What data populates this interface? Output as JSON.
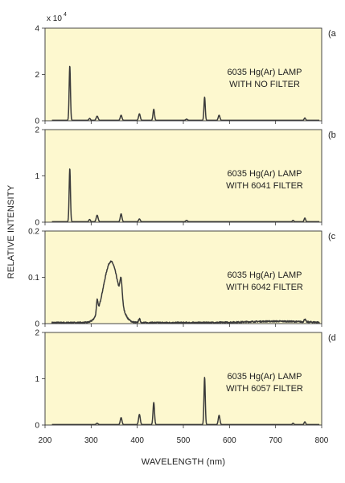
{
  "figure": {
    "y_axis_label": "RELATIVE INTENSITY",
    "x_axis_label": "WAVELENGTH (nm)",
    "scale_note": "x 10",
    "scale_exponent": "4"
  },
  "chart_data": [
    {
      "type": "line",
      "panel_label": "(a",
      "annotation": [
        "6035 Hg(Ar) LAMP",
        "WITH NO FILTER"
      ],
      "xlim": [
        200,
        800
      ],
      "ylim": [
        0,
        4
      ],
      "y_ticks": [
        "0",
        "2",
        "4"
      ],
      "x_ticks": [],
      "baseline": 0.02,
      "noise": 0,
      "peaks": [
        {
          "x": 253.7,
          "y": 2.35,
          "w": 1.4
        },
        {
          "x": 296.7,
          "y": 0.08,
          "w": 1.6
        },
        {
          "x": 313,
          "y": 0.18,
          "w": 2
        },
        {
          "x": 365,
          "y": 0.22,
          "w": 1.8
        },
        {
          "x": 404.7,
          "y": 0.28,
          "w": 1.8
        },
        {
          "x": 435.8,
          "y": 0.48,
          "w": 1.6
        },
        {
          "x": 507,
          "y": 0.05,
          "w": 2
        },
        {
          "x": 546.1,
          "y": 1.0,
          "w": 1.4
        },
        {
          "x": 577.5,
          "y": 0.22,
          "w": 1.8
        },
        {
          "x": 763.5,
          "y": 0.1,
          "w": 1.6
        }
      ]
    },
    {
      "type": "line",
      "panel_label": "(b",
      "annotation": [
        "6035 Hg(Ar) LAMP",
        "WITH 6041 FILTER"
      ],
      "xlim": [
        200,
        800
      ],
      "ylim": [
        0,
        2
      ],
      "y_ticks": [
        "0",
        "1",
        "2"
      ],
      "x_ticks": [],
      "baseline": 0.01,
      "noise": 0,
      "peaks": [
        {
          "x": 253.7,
          "y": 1.15,
          "w": 1.4
        },
        {
          "x": 296.7,
          "y": 0.05,
          "w": 1.6
        },
        {
          "x": 313,
          "y": 0.14,
          "w": 2
        },
        {
          "x": 365,
          "y": 0.17,
          "w": 1.8
        },
        {
          "x": 404.7,
          "y": 0.06,
          "w": 1.8
        },
        {
          "x": 507,
          "y": 0.03,
          "w": 2
        },
        {
          "x": 763.5,
          "y": 0.08,
          "w": 1.6
        },
        {
          "x": 738,
          "y": 0.03,
          "w": 1.6
        }
      ]
    },
    {
      "type": "line",
      "panel_label": "(c",
      "annotation": [
        "6035 Hg(Ar) LAMP",
        "WITH 6042 FILTER"
      ],
      "xlim": [
        200,
        800
      ],
      "ylim": [
        0,
        0.2
      ],
      "y_ticks": [
        "0",
        "0.1",
        "0.2"
      ],
      "x_ticks": [],
      "baseline": 0.002,
      "noise": 0.0015,
      "broad": [
        {
          "x": 343,
          "y": 0.132,
          "w": 16
        },
        {
          "x": 700,
          "y": 0.003,
          "w": 60
        }
      ],
      "peaks": [
        {
          "x": 313,
          "y": 0.028,
          "w": 1.6
        },
        {
          "x": 365,
          "y": 0.045,
          "w": 2.4
        },
        {
          "x": 404.7,
          "y": 0.008,
          "w": 1.8
        },
        {
          "x": 763.5,
          "y": 0.006,
          "w": 1.6
        }
      ]
    },
    {
      "type": "line",
      "panel_label": "(d",
      "annotation": [
        "6035 Hg(Ar) LAMP",
        "WITH 6057 FILTER"
      ],
      "xlim": [
        200,
        800
      ],
      "ylim": [
        0,
        2
      ],
      "y_ticks": [
        "0",
        "1",
        "2"
      ],
      "x_ticks": [
        "200",
        "300",
        "400",
        "500",
        "600",
        "700",
        "800"
      ],
      "baseline": 0.01,
      "noise": 0,
      "peaks": [
        {
          "x": 313,
          "y": 0.03,
          "w": 2
        },
        {
          "x": 365,
          "y": 0.15,
          "w": 1.8
        },
        {
          "x": 404.7,
          "y": 0.22,
          "w": 1.8
        },
        {
          "x": 435.8,
          "y": 0.48,
          "w": 1.6
        },
        {
          "x": 546.1,
          "y": 1.02,
          "w": 1.4
        },
        {
          "x": 577.5,
          "y": 0.2,
          "w": 1.8
        },
        {
          "x": 738,
          "y": 0.03,
          "w": 1.6
        },
        {
          "x": 763.5,
          "y": 0.06,
          "w": 1.6
        }
      ]
    }
  ]
}
